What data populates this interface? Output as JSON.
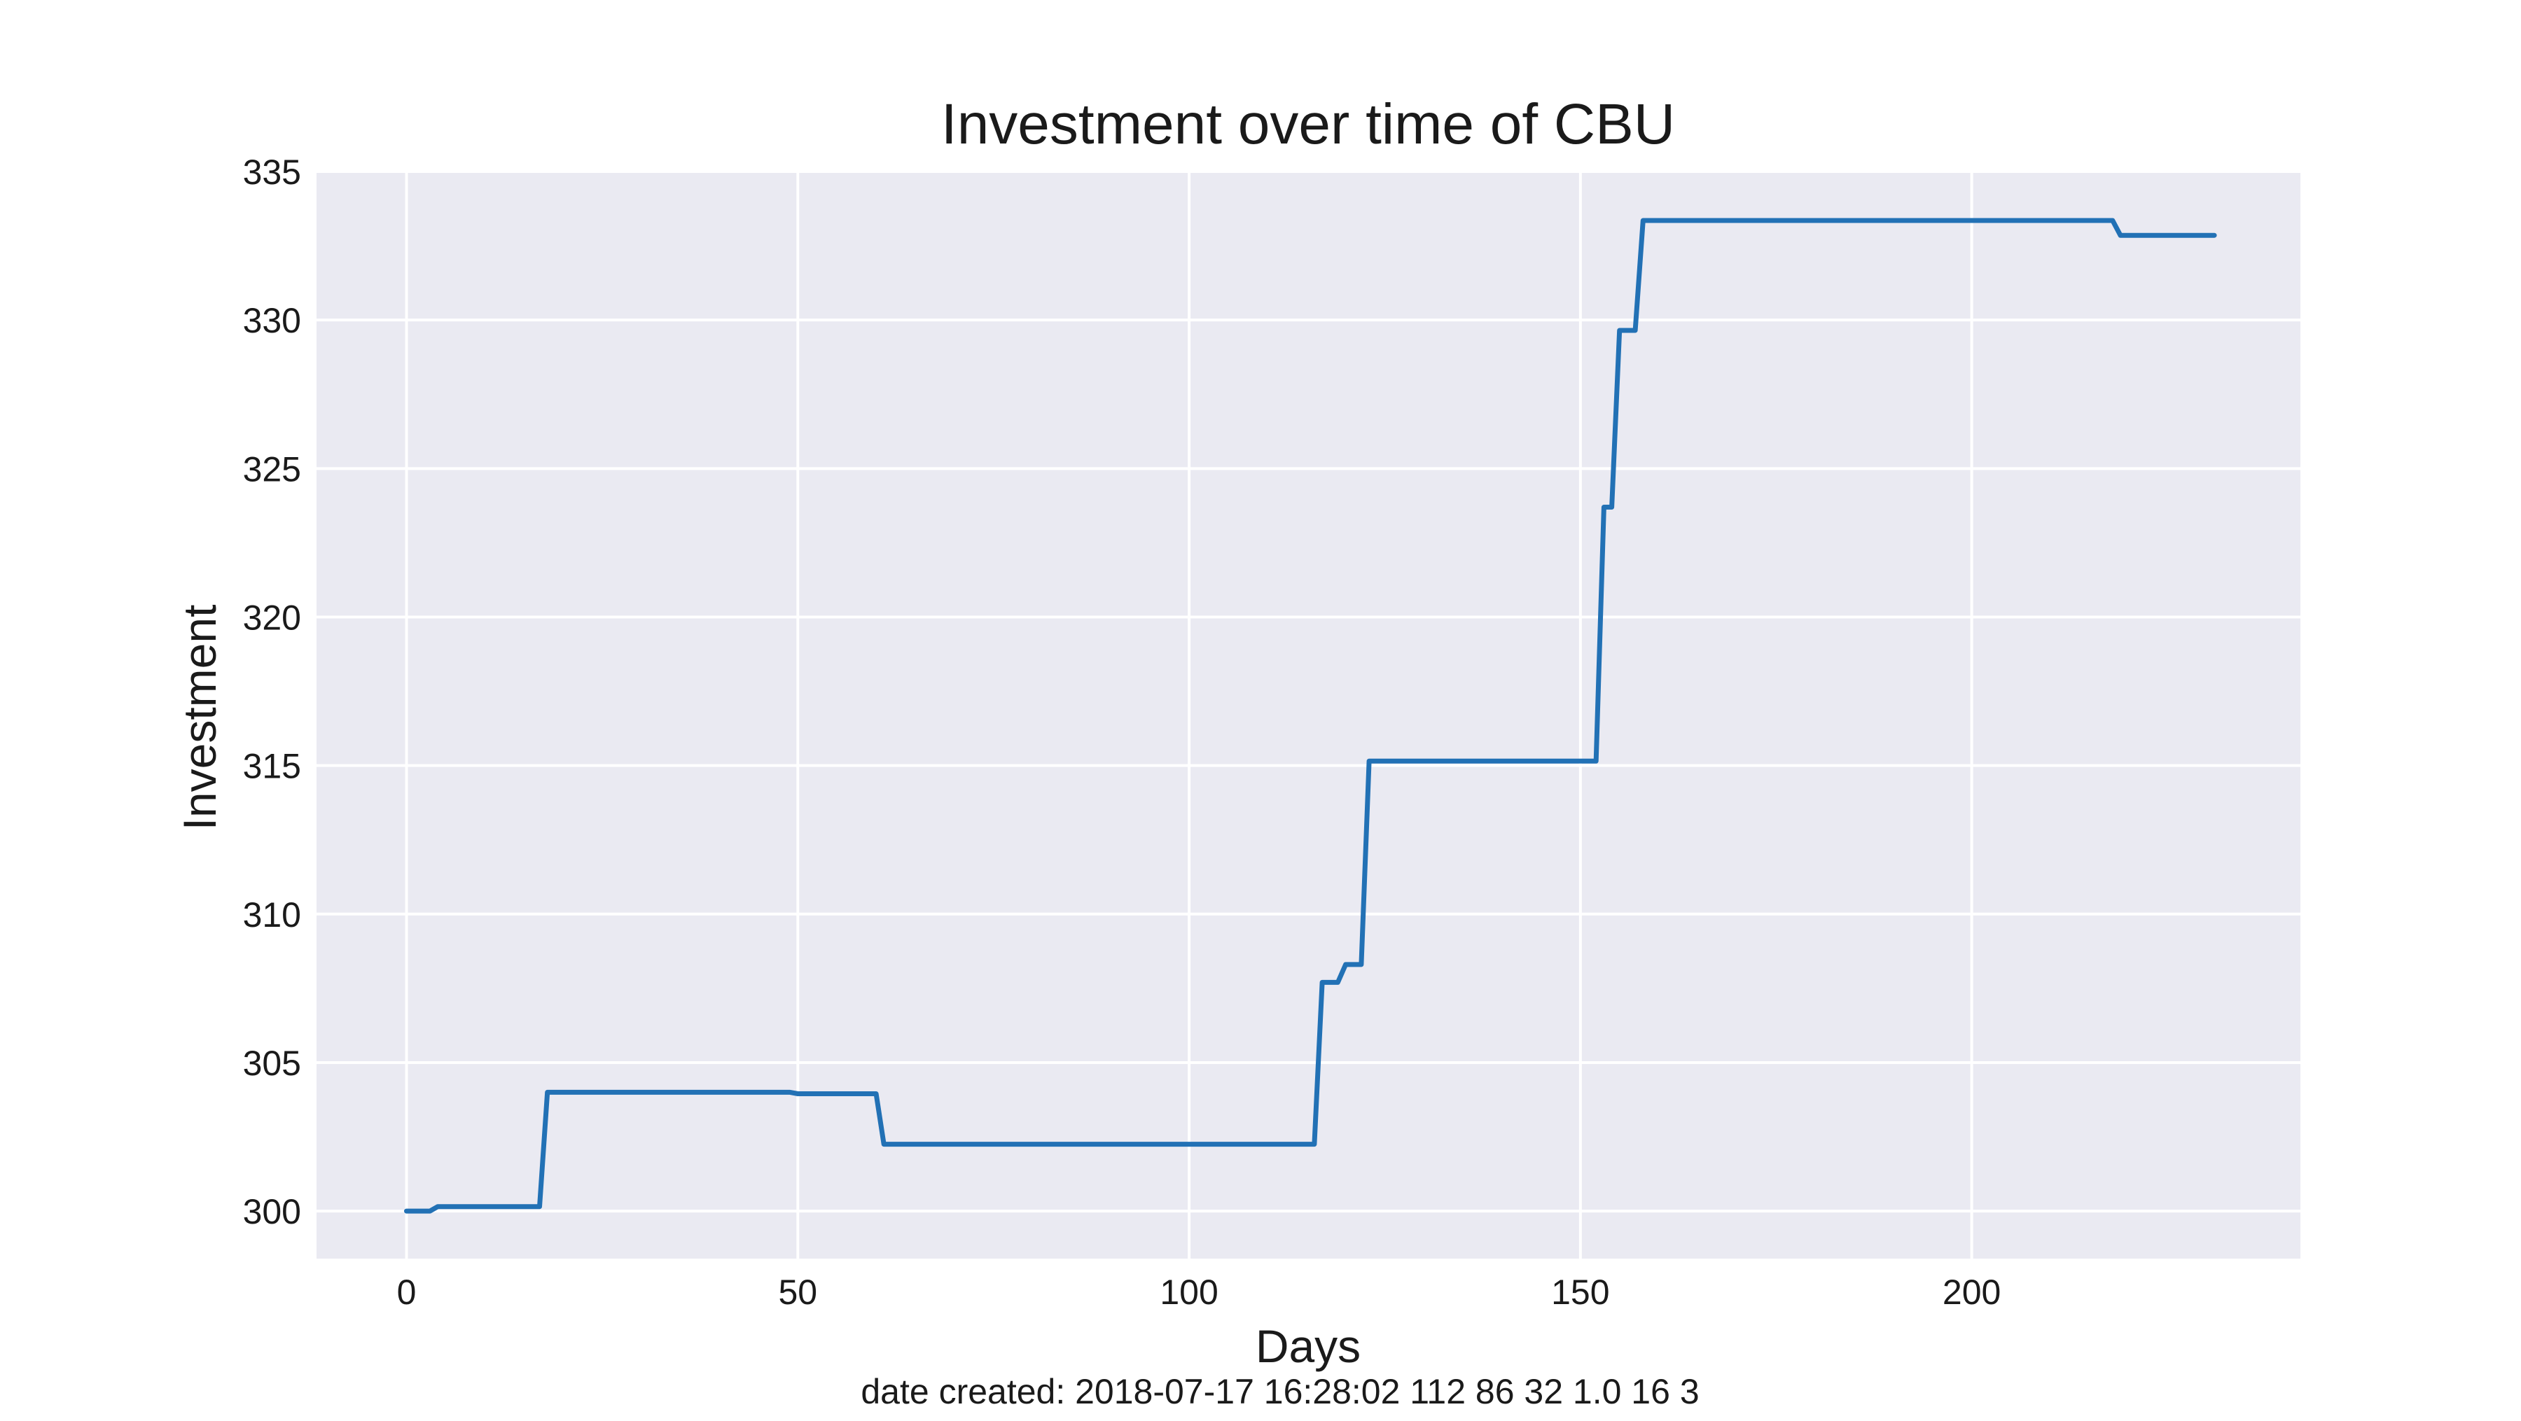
{
  "chart_data": {
    "type": "line",
    "title": "Investment over time of CBU",
    "xlabel": "Days",
    "ylabel": "Investment",
    "xlim": [
      -11.5,
      242
    ],
    "ylim": [
      298.4,
      335
    ],
    "xticks": [
      0,
      50,
      100,
      150,
      200
    ],
    "yticks": [
      300,
      305,
      310,
      315,
      320,
      325,
      330,
      335
    ],
    "grid": true,
    "legend": "none",
    "series": [
      {
        "name": "CBU",
        "color": "#2271b5",
        "points": [
          [
            0,
            300.0
          ],
          [
            3,
            300.0
          ],
          [
            4,
            300.15
          ],
          [
            17,
            300.15
          ],
          [
            18,
            304.0
          ],
          [
            49,
            304.0
          ],
          [
            50,
            303.95
          ],
          [
            60,
            303.95
          ],
          [
            61,
            302.25
          ],
          [
            116,
            302.25
          ],
          [
            117,
            307.7
          ],
          [
            119,
            307.7
          ],
          [
            120,
            308.3
          ],
          [
            122,
            308.3
          ],
          [
            123,
            315.15
          ],
          [
            152,
            315.15
          ],
          [
            153,
            323.7
          ],
          [
            154,
            323.7
          ],
          [
            155,
            329.65
          ],
          [
            157,
            329.65
          ],
          [
            158,
            333.35
          ],
          [
            218,
            333.35
          ],
          [
            219,
            332.85
          ],
          [
            231,
            332.85
          ]
        ]
      }
    ]
  },
  "footer": {
    "caption": "date created: 2018-07-17 16:28:02 112 86 32 1.0 16 3"
  }
}
